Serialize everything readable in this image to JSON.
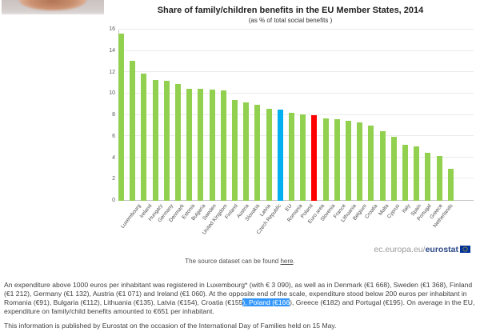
{
  "chart_data": {
    "type": "bar",
    "title": "Share of family/children benefits in the EU Member States, 2014",
    "subtitle": "(as % of total social benefits )",
    "xlabel": "",
    "ylabel": "",
    "ylim": [
      0,
      16
    ],
    "ytick_step": 2,
    "grid": true,
    "legend": "none",
    "categories": [
      "Luxembourg",
      "Ireland",
      "Hungary",
      "Germany",
      "Denmark",
      "Estonia",
      "Bulgaria",
      "Sweden",
      "United Kingdom",
      "Finland",
      "Austria",
      "Slovakia",
      "Latvia",
      "Czech Republic",
      "EU",
      "Romania",
      "Poland",
      "Euro area",
      "Slovenia",
      "France",
      "Lithuania",
      "Belgium",
      "Croatia",
      "Malta",
      "Cyprus",
      "Italy",
      "Spain",
      "Portugal",
      "Greece",
      "Netherlands"
    ],
    "values": [
      15.6,
      13.1,
      11.9,
      11.3,
      11.2,
      10.9,
      10.5,
      10.5,
      10.4,
      10.3,
      9.4,
      9.2,
      9.0,
      8.6,
      8.5,
      8.2,
      8.1,
      8.0,
      7.7,
      7.6,
      7.5,
      7.3,
      7.0,
      6.5,
      6.0,
      5.2,
      5.1,
      4.5,
      4.2,
      3.0
    ],
    "bar_color_default": "#92D050",
    "bar_color_overrides": {
      "EU": "#00B0F0",
      "Euro area": "#FF0000"
    }
  },
  "logo": {
    "prefix": "ec.europa.eu/",
    "brand": "eurostat"
  },
  "source_line": {
    "prefix": "The source dataset can be found ",
    "link": "here",
    "suffix": "."
  },
  "paragraph": {
    "before_selection": "An expenditure above 1000 euros per inhabitant was registered in Luxembourg* (with € 3 090), as well as in Denmark (€1 668), Sweden (€1 368), Finland (€1 212), Germany (€1 132), Austria (€1 071) and Ireland (€1 060). At the opposite end of the scale, expenditure stood below 200 euros per inhabitant in Romania (€91), Bulgaria (€112), Lithuania (€135), Latvia (€154), Croatia (€155",
    "selection": "), Poland (€166",
    "after_selection": "), Greece (€182) and Portugal (€195). On average in the EU, expenditure on family/child benefits amounted to €651 per inhabitant."
  },
  "footnote": "This information is published by Eurostat on the occasion of the International Day of Families held on 15 May.",
  "colors": {
    "selection_background": "#3297fd",
    "eurostat_brand": "#2e4987",
    "eu_flag_blue": "#003399",
    "eu_flag_stars": "#ffcc00"
  }
}
